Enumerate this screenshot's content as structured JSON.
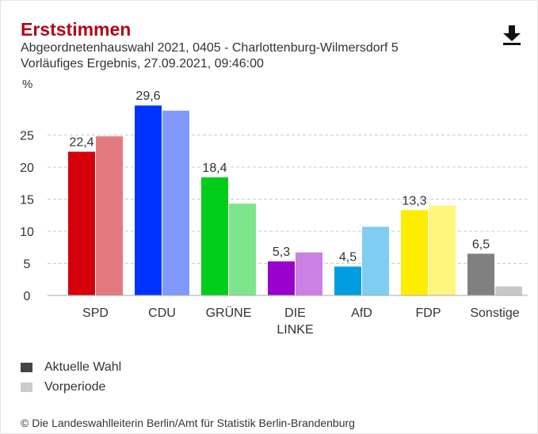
{
  "header": {
    "title": "Erststimmen",
    "subtitle_line1": "Abgeordnetenhauswahl 2021, 0405 - Charlottenburg-Wilmersdorf 5",
    "subtitle_line2": "Vorläufiges Ergebnis, 27.09.2021, 09:46:00",
    "download_icon": "download-icon"
  },
  "chart_data": {
    "type": "bar",
    "ylabel": "%",
    "ylim": [
      0,
      32
    ],
    "yticks": [
      0,
      5,
      10,
      15,
      20,
      25
    ],
    "categories": [
      "SPD",
      "CDU",
      "GRÜNE",
      "DIE LINKE",
      "AfD",
      "FDP",
      "Sonstige"
    ],
    "category_lines": [
      [
        "SPD"
      ],
      [
        "CDU"
      ],
      [
        "GRÜNE"
      ],
      [
        "DIE",
        "LINKE"
      ],
      [
        "AfD"
      ],
      [
        "FDP"
      ],
      [
        "Sonstige"
      ]
    ],
    "series": [
      {
        "name": "Aktuelle Wahl",
        "values": [
          22.4,
          29.6,
          18.4,
          5.3,
          4.5,
          13.3,
          6.5
        ],
        "labels": [
          "22,4",
          "29,6",
          "18,4",
          "5,3",
          "4,5",
          "13,3",
          "6,5"
        ],
        "colors": [
          "#d6000a",
          "#0033ff",
          "#00cc1a",
          "#9900cc",
          "#009ee0",
          "#ffed00",
          "#808080"
        ]
      },
      {
        "name": "Vorperiode",
        "values": [
          24.8,
          28.8,
          14.3,
          6.7,
          10.7,
          14.0,
          1.4
        ],
        "colors": [
          "#e37a80",
          "#8099ff",
          "#7fe58c",
          "#cc7fe5",
          "#7fcdf0",
          "#fff680",
          "#c8c8c8"
        ]
      }
    ],
    "grid": true,
    "legend_position": "bottom-left"
  },
  "legend": [
    {
      "label": "Aktuelle Wahl",
      "color": "#444444"
    },
    {
      "label": "Vorperiode",
      "color": "#cccccc"
    }
  ],
  "footer": {
    "source": "© Die Landeswahlleiterin Berlin/Amt für Statistik Berlin-Brandenburg"
  }
}
